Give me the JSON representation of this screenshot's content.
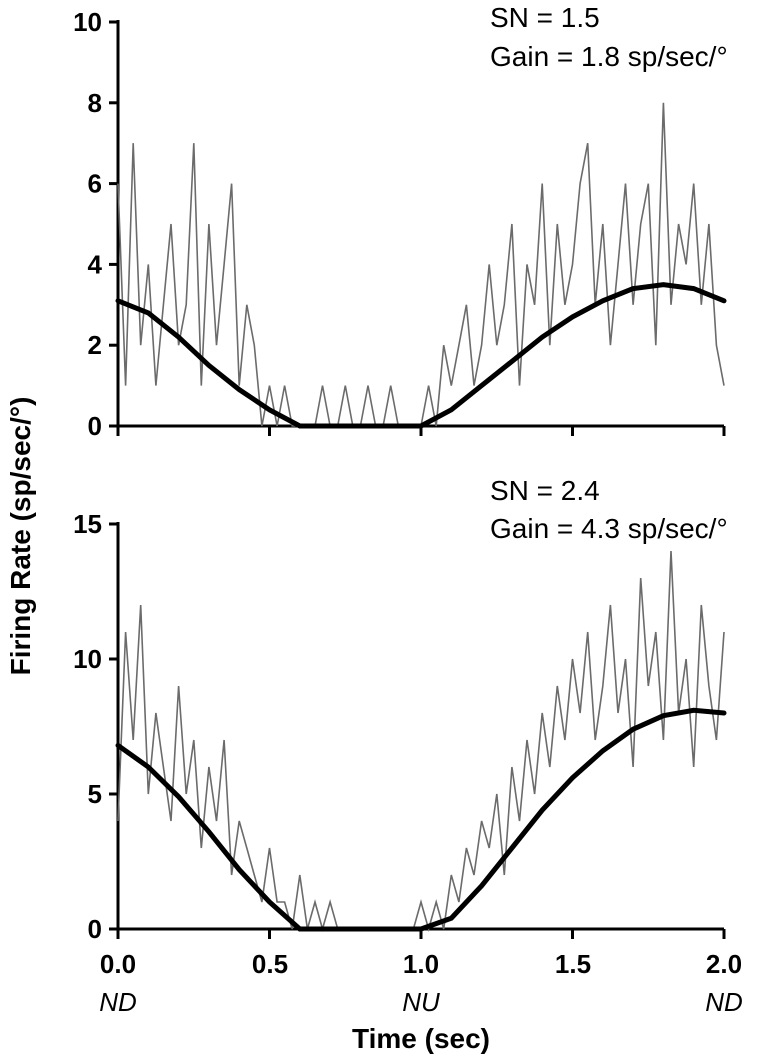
{
  "chart_data": [
    {
      "type": "line",
      "x_range": [
        0.0,
        2.0
      ],
      "ylim": [
        0,
        10
      ],
      "yticks": [
        0,
        2,
        4,
        6,
        8,
        10
      ],
      "xticks": [
        0.0,
        0.5,
        1.0,
        1.5,
        2.0
      ],
      "annotations": [
        "SN = 1.5",
        "Gain = 1.8 sp/sec/°"
      ],
      "series": [
        {
          "style": "raw firing-rate trace (gray)",
          "x": [
            0.0,
            0.025,
            0.05,
            0.075,
            0.1,
            0.125,
            0.15,
            0.175,
            0.2,
            0.225,
            0.25,
            0.275,
            0.3,
            0.325,
            0.35,
            0.375,
            0.4,
            0.425,
            0.45,
            0.475,
            0.5,
            0.525,
            0.55,
            0.575,
            0.6,
            0.625,
            0.65,
            0.675,
            0.7,
            0.725,
            0.75,
            0.775,
            0.8,
            0.825,
            0.85,
            0.875,
            0.9,
            0.925,
            0.95,
            0.975,
            1.0,
            1.025,
            1.05,
            1.075,
            1.1,
            1.125,
            1.15,
            1.175,
            1.2,
            1.225,
            1.25,
            1.275,
            1.3,
            1.325,
            1.35,
            1.375,
            1.4,
            1.425,
            1.45,
            1.475,
            1.5,
            1.525,
            1.55,
            1.575,
            1.6,
            1.625,
            1.65,
            1.675,
            1.7,
            1.725,
            1.75,
            1.775,
            1.8,
            1.825,
            1.85,
            1.875,
            1.9,
            1.925,
            1.95,
            1.975,
            2.0
          ],
          "y": [
            6,
            1,
            7,
            2,
            4,
            1,
            3,
            5,
            2,
            3,
            7,
            1,
            5,
            2,
            4,
            6,
            1,
            3,
            2,
            0,
            1,
            0,
            1,
            0,
            0,
            0,
            0,
            1,
            0,
            0,
            1,
            0,
            0,
            1,
            0,
            0,
            1,
            0,
            0,
            0,
            0,
            1,
            0,
            2,
            1,
            2,
            3,
            1,
            2,
            4,
            2,
            3,
            5,
            1,
            4,
            3,
            6,
            2,
            5,
            3,
            4,
            6,
            7,
            3,
            5,
            2,
            4,
            6,
            3,
            5,
            6,
            2,
            8,
            3,
            5,
            4,
            6,
            3,
            5,
            2,
            1
          ]
        },
        {
          "style": "fitted sinusoid (black)",
          "x": [
            0.0,
            0.1,
            0.2,
            0.3,
            0.4,
            0.5,
            0.6,
            0.7,
            0.8,
            0.9,
            1.0,
            1.1,
            1.2,
            1.3,
            1.4,
            1.5,
            1.6,
            1.7,
            1.8,
            1.9,
            2.0
          ],
          "y": [
            3.1,
            2.8,
            2.2,
            1.5,
            0.9,
            0.4,
            0.0,
            0.0,
            0.0,
            0.0,
            0.0,
            0.4,
            1.0,
            1.6,
            2.2,
            2.7,
            3.1,
            3.4,
            3.5,
            3.4,
            3.1
          ]
        }
      ]
    },
    {
      "type": "line",
      "x_range": [
        0.0,
        2.0
      ],
      "ylim": [
        0,
        15
      ],
      "yticks": [
        0,
        5,
        10,
        15
      ],
      "xticks": [
        0.0,
        0.5,
        1.0,
        1.5,
        2.0
      ],
      "annotations": [
        "SN = 2.4",
        "Gain = 4.3 sp/sec/°"
      ],
      "series": [
        {
          "style": "raw firing-rate trace (gray)",
          "x": [
            0.0,
            0.025,
            0.05,
            0.075,
            0.1,
            0.125,
            0.15,
            0.175,
            0.2,
            0.225,
            0.25,
            0.275,
            0.3,
            0.325,
            0.35,
            0.375,
            0.4,
            0.425,
            0.45,
            0.475,
            0.5,
            0.525,
            0.55,
            0.575,
            0.6,
            0.625,
            0.65,
            0.675,
            0.7,
            0.725,
            0.75,
            0.775,
            0.8,
            0.825,
            0.85,
            0.875,
            0.9,
            0.925,
            0.95,
            0.975,
            1.0,
            1.025,
            1.05,
            1.075,
            1.1,
            1.125,
            1.15,
            1.175,
            1.2,
            1.225,
            1.25,
            1.275,
            1.3,
            1.325,
            1.35,
            1.375,
            1.4,
            1.425,
            1.45,
            1.475,
            1.5,
            1.525,
            1.55,
            1.575,
            1.6,
            1.625,
            1.65,
            1.675,
            1.7,
            1.725,
            1.75,
            1.775,
            1.8,
            1.825,
            1.85,
            1.875,
            1.9,
            1.925,
            1.95,
            1.975,
            2.0
          ],
          "y": [
            4,
            11,
            7,
            12,
            5,
            8,
            6,
            4,
            9,
            5,
            7,
            3,
            6,
            4,
            7,
            2,
            4,
            3,
            2,
            1,
            3,
            1,
            1,
            0,
            2,
            0,
            1,
            0,
            1,
            0,
            0,
            0,
            0,
            0,
            0,
            0,
            0,
            0,
            0,
            0,
            1,
            0,
            1,
            0,
            2,
            1,
            3,
            2,
            4,
            3,
            5,
            2,
            6,
            4,
            7,
            5,
            8,
            6,
            9,
            7,
            10,
            8,
            11,
            7,
            9,
            12,
            8,
            10,
            6,
            13,
            9,
            11,
            7,
            14,
            8,
            10,
            6,
            12,
            9,
            7,
            11
          ]
        },
        {
          "style": "fitted sinusoid (black)",
          "x": [
            0.0,
            0.1,
            0.2,
            0.3,
            0.4,
            0.5,
            0.6,
            0.7,
            0.8,
            0.9,
            1.0,
            1.1,
            1.2,
            1.3,
            1.4,
            1.5,
            1.6,
            1.7,
            1.8,
            1.9,
            2.0
          ],
          "y": [
            6.8,
            6.0,
            4.9,
            3.6,
            2.2,
            1.0,
            0.0,
            0.0,
            0.0,
            0.0,
            0.0,
            0.4,
            1.6,
            3.0,
            4.4,
            5.6,
            6.6,
            7.4,
            7.9,
            8.1,
            8.0
          ]
        }
      ]
    }
  ],
  "shared": {
    "ylabel": "Firing Rate (sp/sec/°)",
    "xlabel": "Time (sec)",
    "x_tick_labels": [
      "0.0",
      "0.5",
      "1.0",
      "1.5",
      "2.0"
    ],
    "direction_labels": [
      "ND",
      "NU",
      "ND"
    ]
  }
}
